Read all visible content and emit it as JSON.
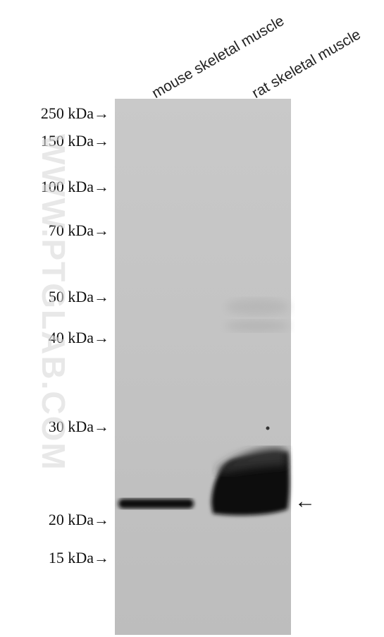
{
  "lanes": [
    {
      "label": "mouse skeletal muscle"
    },
    {
      "label": "rat skeletal muscle"
    }
  ],
  "markers": [
    {
      "label": "250 kDa→"
    },
    {
      "label": "150 kDa→"
    },
    {
      "label": "100 kDa→"
    },
    {
      "label": "70 kDa→"
    },
    {
      "label": "50 kDa→"
    },
    {
      "label": "40 kDa→"
    },
    {
      "label": "30 kDa→"
    },
    {
      "label": "20 kDa→"
    },
    {
      "label": "15 kDa→"
    }
  ],
  "watermark": "WWW.PTGLAB.COM",
  "band_arrow": "←"
}
